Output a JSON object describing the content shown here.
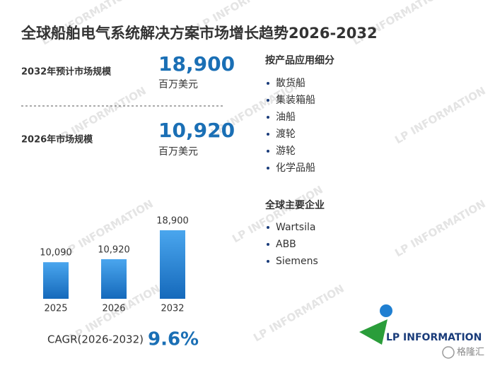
{
  "title": "全球船舶电气系统解决方案市场增长趋势2026-2032",
  "stats": [
    {
      "label": "2032年预计市场规模",
      "value": "18,900",
      "unit": "百万美元"
    },
    {
      "label": "2026年市场规模",
      "value": "10,920",
      "unit": "百万美元"
    }
  ],
  "segments": {
    "heading": "按产品应用细分",
    "items": [
      "散货船",
      "集装箱船",
      "油船",
      "渡轮",
      "游轮",
      "化学品船"
    ]
  },
  "companies": {
    "heading": "全球主要企业",
    "items": [
      "Wartsila",
      "ABB",
      "Siemens"
    ]
  },
  "cagr": {
    "label": "CAGR(2026-2032)",
    "value": "9.6%"
  },
  "logo": "LP INFORMATION",
  "watermark": "LP INFORMATION",
  "source": "格隆汇",
  "chart_data": {
    "type": "bar",
    "categories": [
      "2025",
      "2026",
      "2032"
    ],
    "values": [
      10090,
      10920,
      18900
    ],
    "value_labels": [
      "10,090",
      "10,920",
      "18,900"
    ],
    "color": "#1f7fd1"
  }
}
